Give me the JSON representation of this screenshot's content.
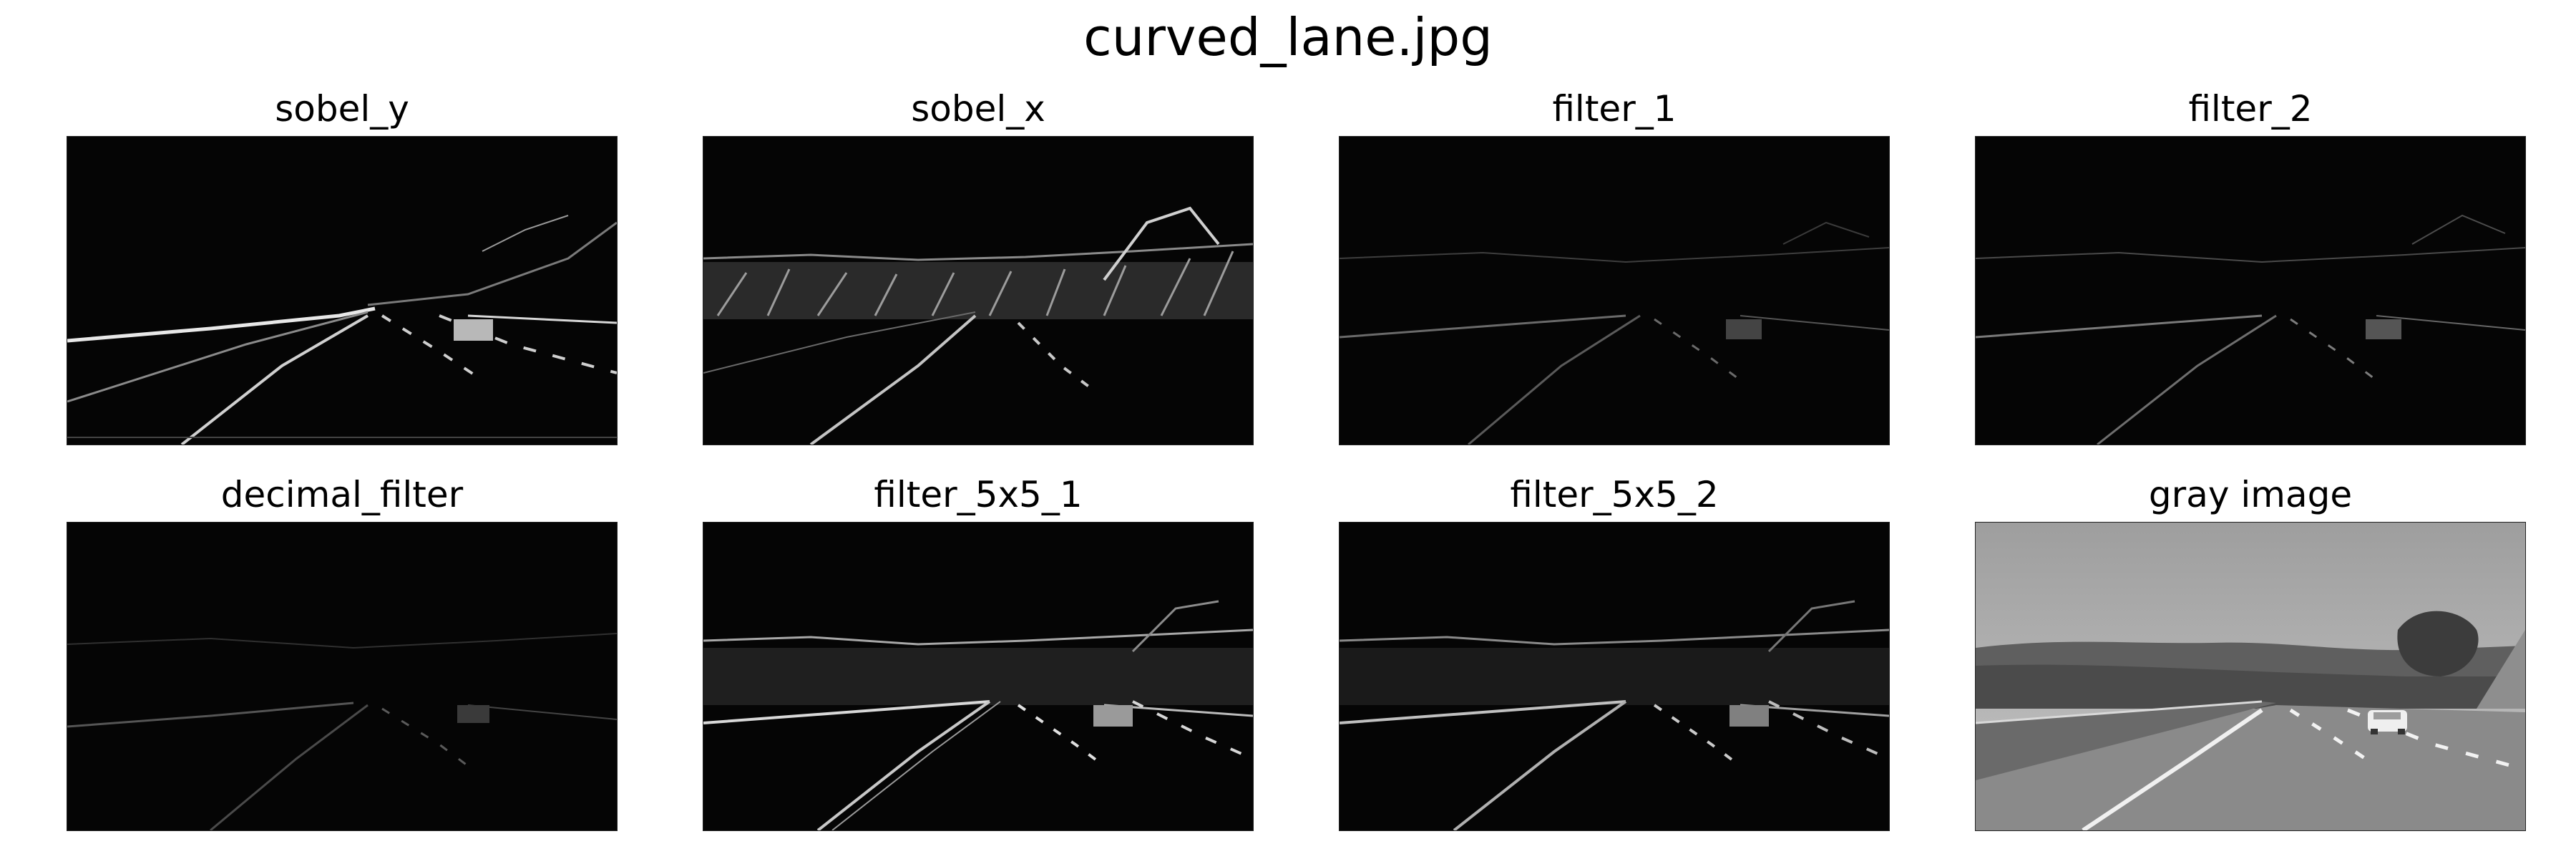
{
  "figure": {
    "title": "curved_lane.jpg"
  },
  "panels": [
    {
      "title": "sobel_y",
      "kind": "edges"
    },
    {
      "title": "sobel_x",
      "kind": "edges"
    },
    {
      "title": "filter_1",
      "kind": "edges"
    },
    {
      "title": "filter_2",
      "kind": "edges"
    },
    {
      "title": "decimal_filter",
      "kind": "edges"
    },
    {
      "title": "filter_5x5_1",
      "kind": "edges"
    },
    {
      "title": "filter_5x5_2",
      "kind": "edges"
    },
    {
      "title": "gray image",
      "kind": "photo"
    }
  ]
}
